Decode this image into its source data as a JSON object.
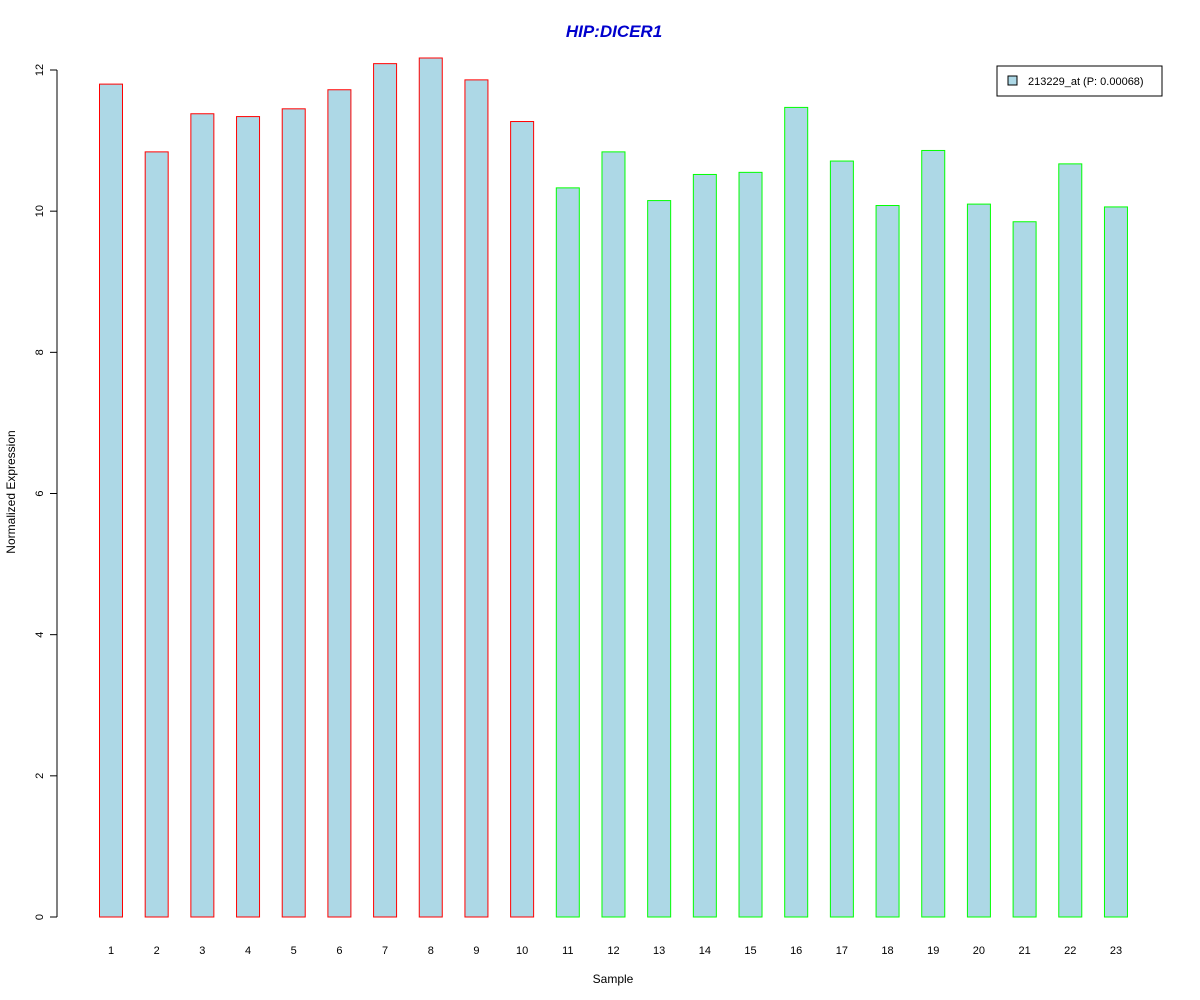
{
  "chart_data": {
    "type": "bar",
    "title": "HIP:DICER1",
    "xlabel": "Sample",
    "ylabel": "Normalized Expression",
    "ylim": [
      0,
      12
    ],
    "yticks": [
      "0",
      "2",
      "4",
      "6",
      "8",
      "10",
      "12"
    ],
    "categories": [
      "1",
      "2",
      "3",
      "4",
      "5",
      "6",
      "7",
      "8",
      "9",
      "10",
      "11",
      "12",
      "13",
      "14",
      "15",
      "16",
      "17",
      "18",
      "19",
      "20",
      "21",
      "22",
      "23"
    ],
    "series": [
      {
        "name": "213229_at (P: 0.00068)",
        "values": [
          11.8,
          10.84,
          11.38,
          11.34,
          11.45,
          11.72,
          12.09,
          12.17,
          11.86,
          11.27,
          10.33,
          10.84,
          10.15,
          10.52,
          10.55,
          11.47,
          10.71,
          10.08,
          10.86,
          10.1,
          9.85,
          10.67,
          10.06
        ]
      }
    ],
    "group_of_sample": [
      "a",
      "a",
      "a",
      "a",
      "a",
      "a",
      "a",
      "a",
      "a",
      "a",
      "b",
      "b",
      "b",
      "b",
      "b",
      "b",
      "b",
      "b",
      "b",
      "b",
      "b",
      "b",
      "b"
    ],
    "legend_position": "top-right",
    "grid": false
  },
  "colors": {
    "bar_fill": "#add8e6",
    "group_a_border": "#ff0000",
    "group_b_border": "#00ff00",
    "title": "#0000cd",
    "axis": "#000000"
  }
}
